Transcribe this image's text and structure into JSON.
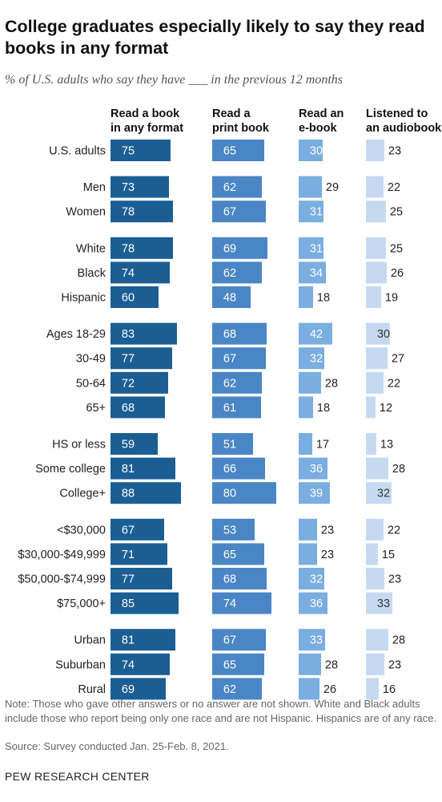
{
  "chart_data": {
    "type": "bar",
    "title": "College graduates especially likely to say they read books in any format",
    "subtitle": "% of U.S. adults who say they have ___ in the previous 12 months",
    "categories": [
      "U.S. adults",
      "Men",
      "Women",
      "White",
      "Black",
      "Hispanic",
      "Ages 18-29",
      "30-49",
      "50-64",
      "65+",
      "HS or less",
      "Some college",
      "College+",
      "<$30,000",
      "$30,000-$49,999",
      "$50,000-$74,999",
      "$75,000+",
      "Urban",
      "Suburban",
      "Rural"
    ],
    "groups": [
      [
        0
      ],
      [
        1,
        2
      ],
      [
        3,
        4,
        5
      ],
      [
        6,
        7,
        8,
        9
      ],
      [
        10,
        11,
        12
      ],
      [
        13,
        14,
        15,
        16
      ],
      [
        17,
        18,
        19
      ]
    ],
    "series": [
      {
        "name": "Read a book\nin any format",
        "color": "#1b5e94",
        "values": [
          75,
          73,
          78,
          78,
          74,
          60,
          83,
          77,
          72,
          68,
          59,
          81,
          88,
          67,
          71,
          77,
          85,
          81,
          74,
          69
        ]
      },
      {
        "name": "Read a\nprint book",
        "color": "#4a86c5",
        "values": [
          65,
          62,
          67,
          69,
          62,
          48,
          68,
          67,
          62,
          61,
          51,
          66,
          80,
          53,
          65,
          68,
          74,
          67,
          65,
          62
        ]
      },
      {
        "name": "Read an\ne-book",
        "color": "#7aaee0",
        "values": [
          30,
          29,
          31,
          31,
          34,
          18,
          42,
          32,
          28,
          18,
          17,
          36,
          39,
          23,
          23,
          32,
          36,
          33,
          28,
          26
        ]
      },
      {
        "name": "Listened to\nan audiobook",
        "color": "#c5daf1",
        "values": [
          23,
          22,
          25,
          25,
          26,
          19,
          30,
          27,
          22,
          12,
          13,
          28,
          32,
          22,
          15,
          23,
          33,
          28,
          23,
          16
        ]
      }
    ]
  },
  "footer": {
    "note": "Note: Those who gave other answers or no answer are not shown. White and Black adults include those who report being only one race and are not Hispanic. Hispanics are of any race.",
    "source": "Source: Survey conducted Jan. 25-Feb. 8, 2021.",
    "org": "PEW RESEARCH CENTER"
  }
}
